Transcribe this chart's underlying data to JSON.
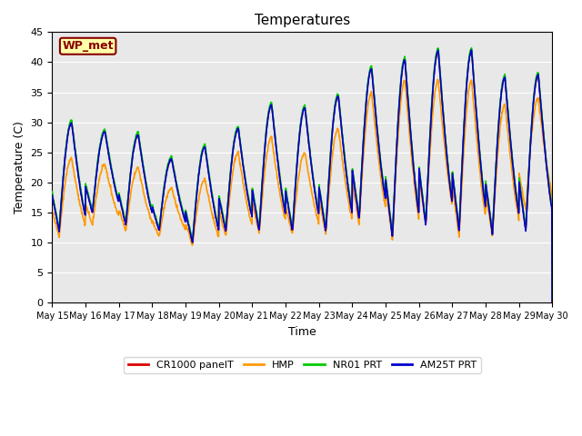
{
  "title": "Temperatures",
  "xlabel": "Time",
  "ylabel": "Temperature (C)",
  "ylim": [
    0,
    45
  ],
  "background_color": "#e8e8e8",
  "figure_bg": "#ffffff",
  "series": {
    "CR1000_panelT": {
      "color": "#dd0000",
      "label": "CR1000 panelT",
      "lw": 1.2
    },
    "HMP": {
      "color": "#ff9900",
      "label": "HMP",
      "lw": 1.2
    },
    "NR01_PRT": {
      "color": "#00cc00",
      "label": "NR01 PRT",
      "lw": 1.2
    },
    "AM25T_PRT": {
      "color": "#0000cc",
      "label": "AM25T PRT",
      "lw": 1.2
    }
  },
  "legend_label": "WP_met",
  "legend_label_bg": "#ffffaa",
  "legend_label_edge": "#880000",
  "tick_label_dates": [
    "May 15",
    "May 16",
    "May 17",
    "May 18",
    "May 19",
    "May 20",
    "May 21",
    "May 22",
    "May 23",
    "May 24",
    "May 25",
    "May 26",
    "May 27",
    "May 28",
    "May 29",
    "May 30"
  ],
  "daily_peaks_cr": [
    30,
    28.5,
    28,
    24,
    26,
    29,
    33,
    32.5,
    34.5,
    39,
    40.5,
    42,
    42,
    37.5,
    38
  ],
  "daily_mins_cr": [
    12,
    15,
    13,
    12,
    10,
    12,
    12,
    12,
    12,
    14,
    11,
    13,
    12,
    11.5,
    12
  ],
  "daily_peaks_hmp": [
    24,
    23,
    22.5,
    19,
    20.5,
    25,
    27.5,
    25,
    29,
    35,
    37,
    37,
    37,
    33,
    34
  ],
  "daily_mins_hmp": [
    11,
    13,
    12,
    11,
    9.5,
    11,
    11.5,
    11.5,
    11.5,
    13,
    10.5,
    13,
    11,
    11,
    15.5
  ],
  "peak_hour": 14,
  "min_hour": 5,
  "grid_color": "#ffffff",
  "grid_lw": 0.8,
  "pts_per_day": 96
}
